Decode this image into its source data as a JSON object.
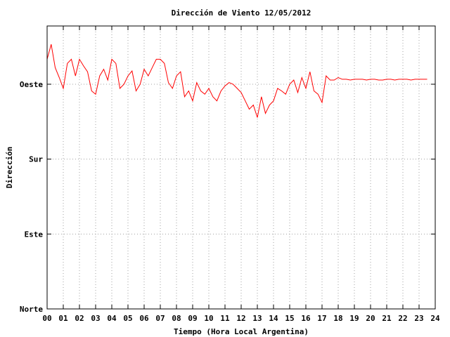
{
  "chart_data": {
    "type": "line",
    "title": "Dirección de Viento 12/05/2012",
    "xlabel": "Tiempo (Hora Local Argentina)",
    "ylabel": "Dirección",
    "x_unit": "hour",
    "xlim": [
      0,
      24
    ],
    "x_tick_labels": [
      "00",
      "01",
      "02",
      "03",
      "04",
      "05",
      "06",
      "07",
      "08",
      "09",
      "10",
      "11",
      "12",
      "13",
      "14",
      "15",
      "16",
      "17",
      "18",
      "19",
      "20",
      "21",
      "22",
      "23",
      "24"
    ],
    "y_categories": [
      "Norte",
      "Este",
      "Sur",
      "Oeste"
    ],
    "y_tick_labels": [
      {
        "label": "Oeste",
        "value": 270
      },
      {
        "label": "Sur",
        "value": 180
      },
      {
        "label": "Este",
        "value": 90
      },
      {
        "label": "Norte",
        "value": 0
      }
    ],
    "y_unit": "degrees",
    "ylim": [
      0,
      340
    ],
    "grid": true,
    "legend": "none",
    "series_color": "#ff0000",
    "series": [
      {
        "x": [
          0.0,
          0.25,
          0.5,
          0.75,
          1.0,
          1.25,
          1.5,
          1.75,
          2.0,
          2.25,
          2.5,
          2.75,
          3.0,
          3.25,
          3.5,
          3.75,
          4.0,
          4.25,
          4.5,
          4.75,
          5.0,
          5.25,
          5.5,
          5.75,
          6.0,
          6.25,
          6.5,
          6.75,
          7.0,
          7.25,
          7.5,
          7.75,
          8.0,
          8.25,
          8.5,
          8.75,
          9.0,
          9.25,
          9.5,
          9.75,
          10.0,
          10.25,
          10.5,
          10.75,
          11.0,
          11.25,
          11.5,
          11.75,
          12.0,
          12.25,
          12.5,
          12.75,
          13.0,
          13.25,
          13.5,
          13.75,
          14.0,
          14.25,
          14.5,
          14.75,
          15.0,
          15.25,
          15.5,
          15.75,
          16.0,
          16.25,
          16.5,
          16.75,
          17.0,
          17.25,
          17.5,
          17.75,
          18.0,
          18.25,
          18.5,
          18.75,
          19.0,
          19.25,
          19.5,
          19.75,
          20.0,
          20.25,
          20.5,
          20.75,
          21.0,
          21.25,
          21.5,
          21.75,
          22.0,
          22.25,
          22.5,
          22.75,
          23.0,
          23.25,
          23.5
        ],
        "y": [
          300,
          318,
          290,
          278,
          265,
          295,
          300,
          280,
          300,
          292,
          285,
          262,
          258,
          280,
          288,
          275,
          300,
          295,
          265,
          270,
          280,
          286,
          262,
          270,
          288,
          280,
          290,
          300,
          300,
          295,
          272,
          265,
          280,
          285,
          255,
          262,
          250,
          272,
          262,
          258,
          265,
          255,
          250,
          262,
          268,
          272,
          270,
          265,
          260,
          250,
          240,
          245,
          230,
          255,
          235,
          245,
          250,
          265,
          262,
          258,
          270,
          275,
          260,
          278,
          265,
          285,
          262,
          258,
          248,
          280,
          275,
          275,
          278,
          276,
          276,
          275,
          276,
          276,
          276,
          275,
          276,
          276,
          275,
          275,
          276,
          276,
          275,
          276,
          276,
          276,
          275,
          276,
          276,
          276,
          276
        ]
      }
    ]
  }
}
